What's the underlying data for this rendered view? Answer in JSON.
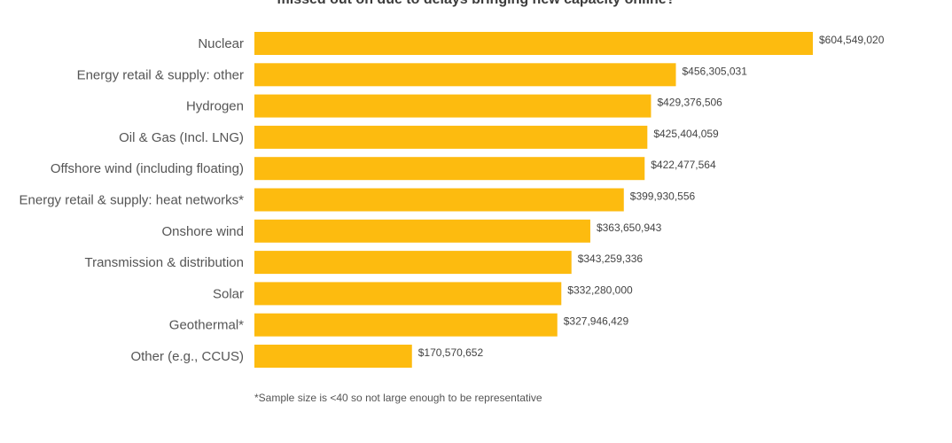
{
  "chart_data": {
    "type": "bar",
    "orientation": "horizontal",
    "title": "missed out on due to delays bringing new capacity online?",
    "categories": [
      "Nuclear",
      "Energy retail & supply: other",
      "Hydrogen",
      "Oil & Gas (Incl. LNG)",
      "Offshore wind (including floating)",
      "Energy retail & supply: heat networks*",
      "Onshore wind",
      "Transmission & distribution",
      "Solar",
      "Geothermal*",
      "Other (e.g., CCUS)"
    ],
    "values": [
      604549020,
      456305031,
      429376506,
      425404059,
      422477564,
      399930556,
      363650943,
      343259336,
      332280000,
      327946429,
      170570652
    ],
    "value_labels": [
      "$604,549,020",
      "$456,305,031",
      "$429,376,506",
      "$425,404,059",
      "$422,477,564",
      "$399,930,556",
      "$363,650,943",
      "$343,259,336",
      "$332,280,000",
      "$327,946,429",
      "$170,570,652"
    ],
    "xlim": [
      0,
      604549020
    ],
    "grid": false,
    "bar_color": "#fdbb0f",
    "footnote": "*Sample size is <40 so not large enough to be representative"
  }
}
